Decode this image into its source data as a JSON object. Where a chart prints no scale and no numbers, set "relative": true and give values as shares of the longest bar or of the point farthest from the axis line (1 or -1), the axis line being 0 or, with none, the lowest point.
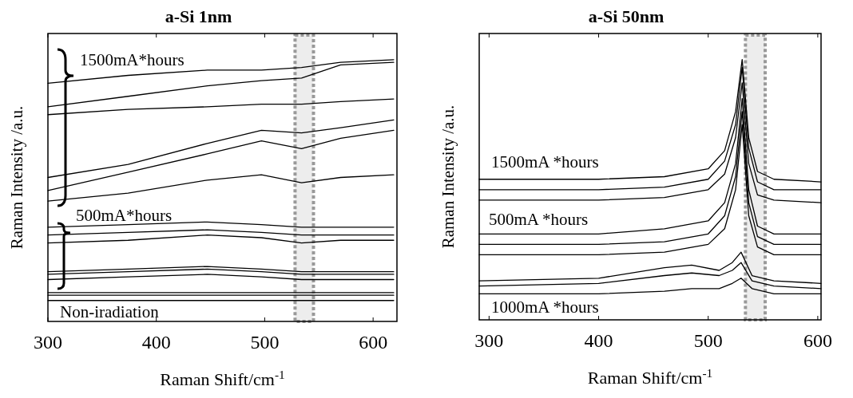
{
  "chart_data": [
    {
      "type": "line",
      "title": "a-Si 1nm",
      "xlabel": "Raman Shift/cm$^{-1}$",
      "ylabel": "Raman Intensity /a.u.",
      "relative": true,
      "xlim": [
        300,
        622
      ],
      "xticks": [
        300,
        400,
        500,
        600
      ],
      "x": [
        300,
        374,
        447,
        497,
        534,
        570,
        619
      ],
      "annotations": [
        "1500mA*hours",
        "500mA*hours",
        "Non-iradiation"
      ],
      "bands": [
        {
          "axis": "x",
          "from": 528,
          "to": 545,
          "color": "#999999"
        }
      ],
      "series": [
        {
          "color": "#000000",
          "values": [
            0.91,
            0.94,
            0.96,
            0.96,
            0.97,
            0.99,
            1.0
          ]
        },
        {
          "color": "#000000",
          "values": [
            0.82,
            0.86,
            0.9,
            0.92,
            0.93,
            0.98,
            0.99
          ]
        },
        {
          "color": "#000000",
          "values": [
            0.79,
            0.81,
            0.82,
            0.83,
            0.83,
            0.84,
            0.85
          ]
        },
        {
          "color": "#000000",
          "values": [
            0.55,
            0.6,
            0.68,
            0.73,
            0.72,
            0.74,
            0.77
          ]
        },
        {
          "color": "#000000",
          "values": [
            0.5,
            0.57,
            0.64,
            0.69,
            0.66,
            0.7,
            0.73
          ]
        },
        {
          "color": "#000000",
          "values": [
            0.46,
            0.49,
            0.54,
            0.56,
            0.53,
            0.55,
            0.56
          ]
        },
        {
          "color": "#000000",
          "values": [
            0.36,
            0.37,
            0.38,
            0.37,
            0.36,
            0.36,
            0.36
          ]
        },
        {
          "color": "#000000",
          "values": [
            0.33,
            0.34,
            0.35,
            0.34,
            0.33,
            0.33,
            0.33
          ]
        },
        {
          "color": "#000000",
          "values": [
            0.3,
            0.31,
            0.33,
            0.32,
            0.3,
            0.31,
            0.31
          ]
        },
        {
          "color": "#000000",
          "values": [
            0.19,
            0.2,
            0.21,
            0.2,
            0.19,
            0.19,
            0.19
          ]
        },
        {
          "color": "#000000",
          "values": [
            0.18,
            0.19,
            0.2,
            0.19,
            0.18,
            0.18,
            0.18
          ]
        },
        {
          "color": "#000000",
          "values": [
            0.16,
            0.17,
            0.18,
            0.17,
            0.16,
            0.16,
            0.16
          ]
        },
        {
          "color": "#000000",
          "values": [
            0.11,
            0.11,
            0.11,
            0.11,
            0.11,
            0.11,
            0.11
          ]
        },
        {
          "color": "#000000",
          "values": [
            0.1,
            0.1,
            0.1,
            0.1,
            0.1,
            0.1,
            0.1
          ]
        },
        {
          "color": "#000000",
          "values": [
            0.08,
            0.08,
            0.08,
            0.08,
            0.08,
            0.08,
            0.08
          ]
        }
      ]
    },
    {
      "type": "line",
      "title": "a-Si 50nm",
      "xlabel": "Raman Shift/cm$^{-1}$",
      "ylabel": "Raman Intensity /a.u.",
      "relative": true,
      "xlim": [
        291,
        603
      ],
      "xticks": [
        300,
        400,
        500,
        600
      ],
      "x": [
        291,
        400,
        460,
        500,
        515,
        525,
        531,
        537,
        545,
        560,
        603
      ],
      "annotations": [
        "1500mA *hours",
        "500mA *hours",
        "1000mA *hours"
      ],
      "bands": [
        {
          "axis": "x",
          "from": 534,
          "to": 552,
          "color": "#999999"
        }
      ],
      "series": [
        {
          "color": "#000000",
          "values": [
            0.54,
            0.54,
            0.55,
            0.58,
            0.65,
            0.8,
            1.0,
            0.7,
            0.57,
            0.54,
            0.53
          ]
        },
        {
          "color": "#000000",
          "values": [
            0.5,
            0.5,
            0.51,
            0.54,
            0.61,
            0.75,
            0.97,
            0.66,
            0.53,
            0.5,
            0.5
          ]
        },
        {
          "color": "#000000",
          "values": [
            0.46,
            0.46,
            0.47,
            0.5,
            0.56,
            0.7,
            0.91,
            0.6,
            0.48,
            0.46,
            0.45
          ]
        },
        {
          "color": "#000000",
          "values": [
            0.33,
            0.33,
            0.35,
            0.38,
            0.45,
            0.6,
            0.85,
            0.5,
            0.36,
            0.33,
            0.33
          ]
        },
        {
          "color": "#000000",
          "values": [
            0.29,
            0.29,
            0.3,
            0.33,
            0.4,
            0.55,
            0.8,
            0.45,
            0.32,
            0.29,
            0.29
          ]
        },
        {
          "color": "#000000",
          "values": [
            0.25,
            0.25,
            0.26,
            0.29,
            0.35,
            0.5,
            0.75,
            0.4,
            0.28,
            0.25,
            0.25
          ]
        },
        {
          "color": "#000000",
          "x": [
            291,
            400,
            460,
            485,
            510,
            522,
            530,
            540,
            560,
            603
          ],
          "values": [
            0.15,
            0.16,
            0.2,
            0.21,
            0.19,
            0.22,
            0.26,
            0.17,
            0.15,
            0.14
          ]
        },
        {
          "color": "#000000",
          "x": [
            291,
            400,
            460,
            485,
            510,
            522,
            530,
            540,
            560,
            603
          ],
          "values": [
            0.13,
            0.14,
            0.17,
            0.18,
            0.17,
            0.19,
            0.22,
            0.15,
            0.13,
            0.12
          ]
        },
        {
          "color": "#000000",
          "x": [
            291,
            400,
            460,
            485,
            510,
            522,
            530,
            540,
            560,
            603
          ],
          "values": [
            0.1,
            0.1,
            0.11,
            0.12,
            0.12,
            0.14,
            0.16,
            0.12,
            0.1,
            0.1
          ]
        }
      ]
    }
  ]
}
